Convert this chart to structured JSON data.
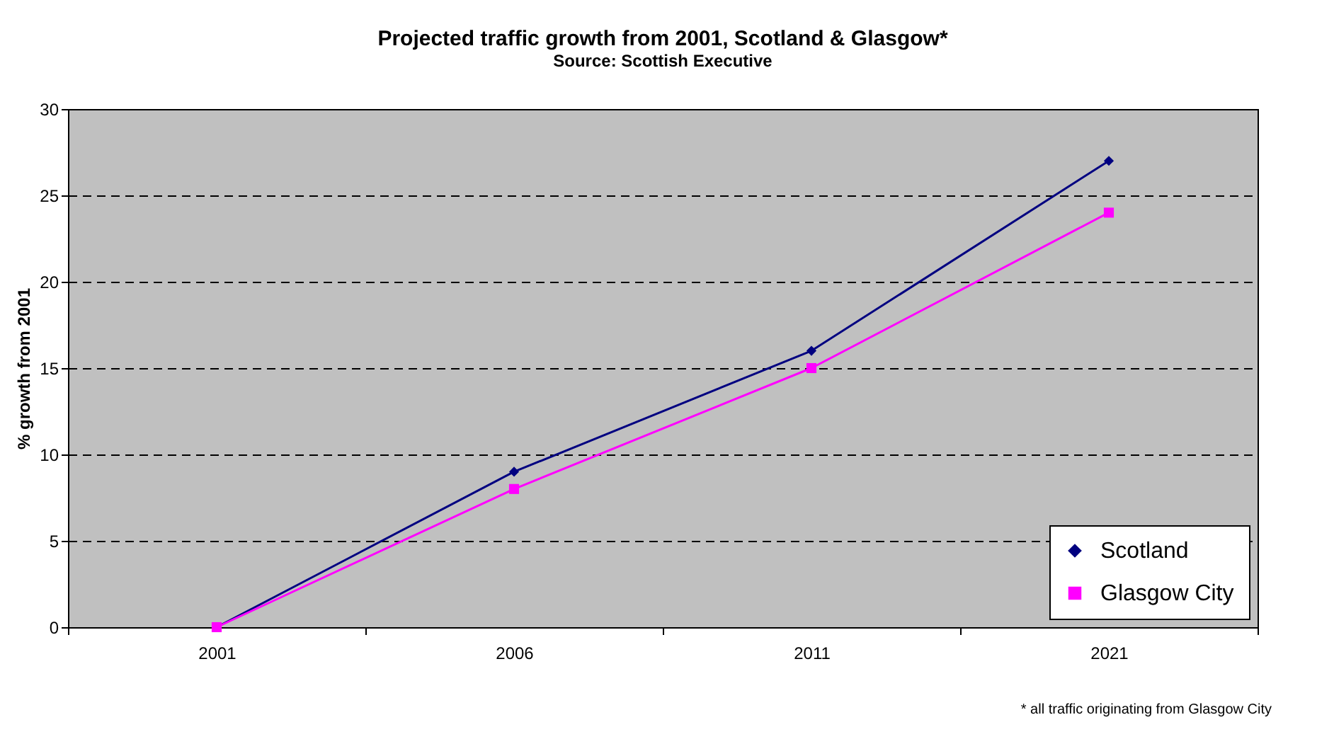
{
  "chart_data": {
    "type": "line",
    "title": "Projected traffic growth from 2001, Scotland & Glasgow*",
    "subtitle": "Source: Scottish Executive",
    "ylabel": "% growth from 2001",
    "categories": [
      "2001",
      "2006",
      "2011",
      "2021"
    ],
    "series": [
      {
        "name": "Scotland",
        "color": "#000080",
        "marker": "diamond",
        "values": [
          0,
          9,
          16,
          27
        ]
      },
      {
        "name": "Glasgow City",
        "color": "#ff00ff",
        "marker": "square",
        "values": [
          0,
          8,
          15,
          24
        ]
      }
    ],
    "ylim": [
      0,
      30
    ],
    "yticks": [
      0,
      5,
      10,
      15,
      20,
      25,
      30
    ],
    "grid": "y",
    "legend": "bottom right",
    "line_style": "solid",
    "annotations": [
      "* all traffic originating from Glasgow City"
    ]
  }
}
